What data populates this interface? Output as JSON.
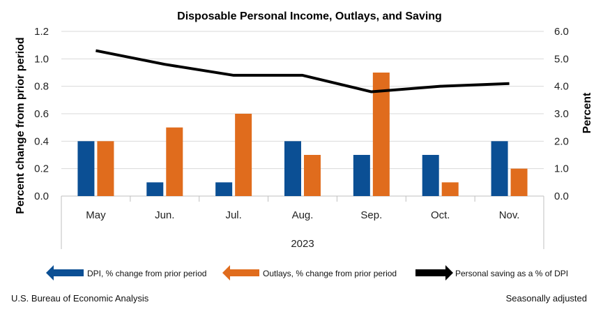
{
  "chart_data": {
    "type": "bar",
    "title": "Disposable Personal Income, Outlays, and Saving",
    "categories": [
      "May",
      "Jun.",
      "Jul.",
      "Aug.",
      "Sep.",
      "Oct.",
      "Nov."
    ],
    "group_label": "2023",
    "series": [
      {
        "name": "DPI, % change from prior period",
        "type": "bar",
        "axis": "left",
        "color": "#0b4f94",
        "values": [
          0.4,
          0.1,
          0.1,
          0.4,
          0.3,
          0.3,
          0.4
        ]
      },
      {
        "name": "Outlays, % change from prior period",
        "type": "bar",
        "axis": "left",
        "color": "#e06c1d",
        "values": [
          0.4,
          0.5,
          0.6,
          0.3,
          0.9,
          0.1,
          0.2
        ]
      },
      {
        "name": "Personal saving as a % of DPI",
        "type": "line",
        "axis": "right",
        "color": "#000000",
        "values": [
          5.3,
          4.8,
          4.4,
          4.4,
          3.8,
          4.0,
          4.1
        ]
      }
    ],
    "ylabel": "Percent change from prior period",
    "ylabel_right": "Percent",
    "ylim": [
      0,
      1.2
    ],
    "ylim_right": [
      0,
      6
    ],
    "yticks": [
      "0.0",
      "0.2",
      "0.4",
      "0.6",
      "0.8",
      "1.0",
      "1.2"
    ],
    "yticks_right": [
      "0.0",
      "1.0",
      "2.0",
      "3.0",
      "4.0",
      "5.0",
      "6.0"
    ],
    "grid": true,
    "legend_position": "bottom"
  },
  "footer": {
    "source": "U.S. Bureau of Economic Analysis",
    "note": "Seasonally adjusted"
  }
}
